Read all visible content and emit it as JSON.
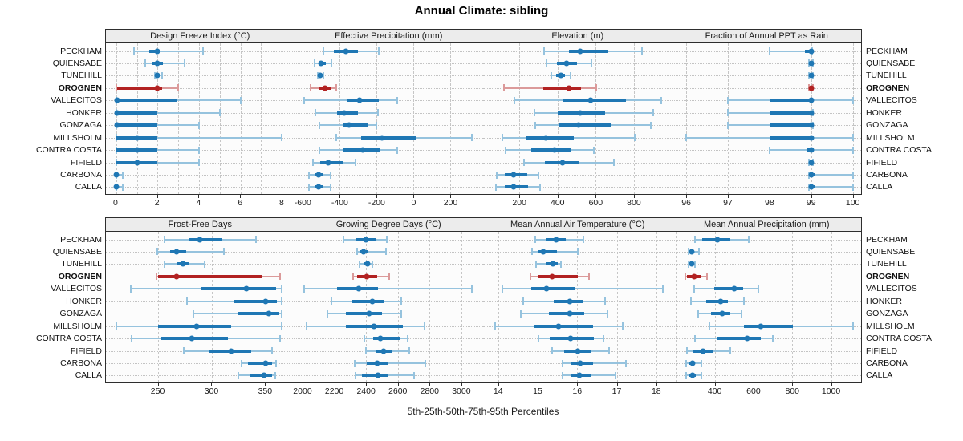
{
  "title": "Annual Climate: sibling",
  "caption": "5th-25th-50th-75th-95th Percentiles",
  "sites": [
    "PECKHAM",
    "QUIENSABE",
    "TUNEHILL",
    "OROGNEN",
    "VALLECITOS",
    "HONKER",
    "GONZAGA",
    "MILLSHOLM",
    "CONTRA COSTA",
    "FIFIELD",
    "CARBONA",
    "CALLA"
  ],
  "highlighted_site": "OROGNEN",
  "colors": {
    "series_blue": "#1f77b4",
    "series_blue_light": "#96c3de",
    "highlight_red": "#b22222",
    "highlight_red_light": "#db9a9a",
    "header_bg": "#ececec",
    "panel_border": "#2e2e2e",
    "gridline": "#c6c6c6"
  },
  "chart_data": {
    "type": "interval",
    "note": "Horizontal percentile interval plot: thin capped line = 5th-95th, thick line = 25th-75th, dot = 50th percentile",
    "percentiles": [
      "5th",
      "25th",
      "50th",
      "75th",
      "95th"
    ],
    "categories": [
      "PECKHAM",
      "QUIENSABE",
      "TUNEHILL",
      "OROGNEN",
      "VALLECITOS",
      "HONKER",
      "GONZAGA",
      "MILLSHOLM",
      "CONTRA COSTA",
      "FIFIELD",
      "CARBONA",
      "CALLA"
    ],
    "highlight": "OROGNEN",
    "legend_position": "none",
    "grid": true,
    "panels": [
      {
        "title": "Design Freeze Index (°C)",
        "row": 0,
        "col": 0,
        "xlim": [
          -0.5,
          8.6
        ],
        "ticks": [
          0,
          2,
          4,
          6,
          8
        ],
        "gridlines": [
          0,
          1,
          2,
          3,
          4,
          5,
          6,
          7,
          8
        ],
        "values": [
          [
            0.85,
            1.6,
            2.0,
            2.15,
            4.2
          ],
          [
            1.4,
            1.7,
            2.0,
            2.25,
            3.3
          ],
          [
            1.85,
            1.95,
            2.0,
            2.1,
            2.2
          ],
          [
            0,
            0.05,
            2.0,
            2.2,
            3.0
          ],
          [
            0,
            0,
            0.05,
            2.9,
            6.0
          ],
          [
            0,
            0,
            0.05,
            2.0,
            5.0
          ],
          [
            0,
            0,
            0.05,
            2.0,
            4.0
          ],
          [
            0,
            0.02,
            1.0,
            2.0,
            8.0
          ],
          [
            0,
            0.02,
            1.0,
            2.0,
            4.0
          ],
          [
            0,
            0.02,
            1.0,
            2.0,
            4.0
          ],
          [
            0,
            0,
            0.02,
            0.1,
            0.3
          ],
          [
            0,
            0,
            0.02,
            0.1,
            0.3
          ]
        ]
      },
      {
        "title": "Effective Precipitation (mm)",
        "row": 0,
        "col": 1,
        "xlim": [
          -647,
          376
        ],
        "ticks": [
          -600,
          -400,
          -200,
          0,
          200
        ],
        "gridlines": [
          -600,
          -400,
          -200,
          0,
          200
        ],
        "values": [
          [
            -490,
            -430,
            -367,
            -300,
            -187
          ],
          [
            -535,
            -515,
            -500,
            -477,
            -445
          ],
          [
            -520,
            -512,
            -505,
            -495,
            -487
          ],
          [
            -560,
            -515,
            -480,
            -450,
            -420
          ],
          [
            -592,
            -360,
            -294,
            -187,
            -90
          ],
          [
            -530,
            -415,
            -375,
            -300,
            -195
          ],
          [
            -512,
            -383,
            -350,
            -248,
            -200
          ],
          [
            -418,
            -285,
            -172,
            10,
            315
          ],
          [
            -510,
            -385,
            -274,
            -183,
            -90
          ],
          [
            -545,
            -505,
            -462,
            -385,
            -315
          ],
          [
            -566,
            -532,
            -516,
            -494,
            -450
          ],
          [
            -565,
            -530,
            -515,
            -490,
            -449
          ]
        ]
      },
      {
        "title": "Elevation (m)",
        "row": 0,
        "col": 2,
        "xlim": [
          10,
          1000
        ],
        "ticks": [
          200,
          400,
          600,
          800
        ],
        "gridlines": [
          200,
          400,
          600,
          800,
          1000
        ],
        "values": [
          [
            330,
            458,
            520,
            665,
            843
          ],
          [
            342,
            395,
            447,
            500,
            577
          ],
          [
            367,
            393,
            416,
            440,
            469
          ],
          [
            120,
            325,
            458,
            525,
            604
          ],
          [
            172,
            430,
            572,
            758,
            943
          ],
          [
            277,
            402,
            517,
            649,
            901
          ],
          [
            284,
            407,
            510,
            677,
            888
          ],
          [
            110,
            235,
            340,
            486,
            804
          ],
          [
            128,
            263,
            384,
            472,
            590
          ],
          [
            225,
            332,
            426,
            510,
            695
          ],
          [
            82,
            124,
            168,
            242,
            298
          ],
          [
            78,
            125,
            170,
            245,
            307
          ]
        ]
      },
      {
        "title": "Fraction of Annual PPT as Rain",
        "row": 0,
        "col": 3,
        "xlim": [
          95.66,
          100.2
        ],
        "ticks": [
          96,
          97,
          98,
          99,
          100
        ],
        "gridlines": [
          96,
          97,
          98,
          99,
          100
        ],
        "values": [
          [
            98.0,
            98.85,
            99.0,
            99.0,
            99.02
          ],
          [
            98.95,
            98.98,
            99.0,
            99.02,
            99.05
          ],
          [
            98.95,
            98.98,
            99.0,
            99.02,
            99.05
          ],
          [
            98.95,
            98.98,
            99.0,
            99.02,
            99.05
          ],
          [
            97.0,
            98.0,
            99.0,
            99.02,
            100.0
          ],
          [
            97.0,
            98.0,
            99.0,
            99.02,
            99.05
          ],
          [
            97.0,
            98.0,
            99.0,
            99.02,
            99.05
          ],
          [
            96.0,
            98.0,
            99.0,
            99.02,
            100.0
          ],
          [
            98.0,
            98.9,
            99.0,
            99.05,
            100.0
          ],
          [
            98.95,
            98.98,
            99.0,
            99.02,
            99.05
          ],
          [
            98.95,
            98.98,
            99.0,
            99.1,
            100.0
          ],
          [
            98.95,
            98.98,
            99.0,
            99.1,
            100.0
          ]
        ]
      },
      {
        "title": "Frost-Free Days",
        "row": 1,
        "col": 0,
        "xlim": [
          201,
          377
        ],
        "ticks": [
          250,
          300,
          350
        ],
        "gridlines": [
          250,
          300,
          350
        ],
        "values": [
          [
            256,
            278,
            289,
            310,
            341
          ],
          [
            249,
            261,
            267,
            276,
            311
          ],
          [
            256,
            267,
            273,
            278,
            293
          ],
          [
            248,
            250,
            267,
            347,
            364
          ],
          [
            224,
            290,
            332,
            360,
            365
          ],
          [
            277,
            320,
            350,
            361,
            365
          ],
          [
            283,
            325,
            353,
            363,
            365
          ],
          [
            211,
            250,
            286,
            318,
            365
          ],
          [
            225,
            253,
            281,
            315,
            364
          ],
          [
            274,
            298,
            318,
            337,
            356
          ],
          [
            328,
            334,
            350,
            356,
            360
          ],
          [
            325,
            335,
            349,
            356,
            359
          ]
        ]
      },
      {
        "title": "Growing Degree Days (°C)",
        "row": 1,
        "col": 1,
        "xlim": [
          1947,
          3137
        ],
        "ticks": [
          2000,
          2200,
          2400,
          2600,
          2800,
          3000
        ],
        "gridlines": [
          2000,
          2200,
          2400,
          2600,
          2800,
          3000
        ],
        "values": [
          [
            2260,
            2340,
            2400,
            2460,
            2530
          ],
          [
            2345,
            2357,
            2382,
            2415,
            2525
          ],
          [
            2357,
            2390,
            2411,
            2426,
            2440
          ],
          [
            2320,
            2343,
            2403,
            2470,
            2546
          ],
          [
            2010,
            2217,
            2352,
            2473,
            3068
          ],
          [
            2180,
            2315,
            2440,
            2513,
            2620
          ],
          [
            2157,
            2272,
            2420,
            2499,
            2620
          ],
          [
            2027,
            2272,
            2450,
            2631,
            2770
          ],
          [
            2389,
            2445,
            2492,
            2611,
            2660
          ],
          [
            2400,
            2458,
            2509,
            2563,
            2674
          ],
          [
            2330,
            2403,
            2470,
            2543,
            2775
          ],
          [
            2335,
            2374,
            2475,
            2538,
            2704
          ]
        ]
      },
      {
        "title": "Mean Annual Air Temperature (°C)",
        "row": 1,
        "col": 2,
        "xlim": [
          13.62,
          18.4
        ],
        "ticks": [
          14,
          15,
          16,
          17,
          18
        ],
        "gridlines": [
          14,
          15,
          16,
          17,
          18
        ],
        "values": [
          [
            14.94,
            15.21,
            15.46,
            15.71,
            16.15
          ],
          [
            14.86,
            15.02,
            15.15,
            15.48,
            16.02
          ],
          [
            14.96,
            15.2,
            15.38,
            15.5,
            15.58
          ],
          [
            14.81,
            15.0,
            15.37,
            16.02,
            16.29
          ],
          [
            14.11,
            14.83,
            15.23,
            15.93,
            18.17
          ],
          [
            14.63,
            15.4,
            15.82,
            16.14,
            16.7
          ],
          [
            14.58,
            15.29,
            15.82,
            16.17,
            16.76
          ],
          [
            13.92,
            14.9,
            15.53,
            16.4,
            17.15
          ],
          [
            15.03,
            15.31,
            15.83,
            16.42,
            16.66
          ],
          [
            15.36,
            15.66,
            16.01,
            16.37,
            16.8
          ],
          [
            15.63,
            15.83,
            16.07,
            16.41,
            17.23
          ],
          [
            15.63,
            15.83,
            16.06,
            16.37,
            16.97
          ]
        ]
      },
      {
        "title": "Mean Annual Precipitation (mm)",
        "row": 1,
        "col": 3,
        "xlim": [
          180,
          1155
        ],
        "ticks": [
          400,
          600,
          800,
          1000
        ],
        "gridlines": [
          200,
          400,
          600,
          800,
          1000
        ],
        "values": [
          [
            299,
            334,
            414,
            479,
            575
          ],
          [
            264,
            274,
            283,
            295,
            317
          ],
          [
            264,
            272,
            282,
            290,
            299
          ],
          [
            248,
            258,
            292,
            327,
            361
          ],
          [
            295,
            396,
            500,
            548,
            624
          ],
          [
            279,
            354,
            430,
            469,
            552
          ],
          [
            313,
            382,
            440,
            479,
            538
          ],
          [
            372,
            552,
            638,
            804,
            1112
          ],
          [
            299,
            414,
            566,
            638,
            700
          ],
          [
            258,
            289,
            338,
            389,
            479
          ],
          [
            253,
            268,
            285,
            300,
            330
          ],
          [
            253,
            270,
            285,
            302,
            330
          ]
        ]
      }
    ]
  }
}
